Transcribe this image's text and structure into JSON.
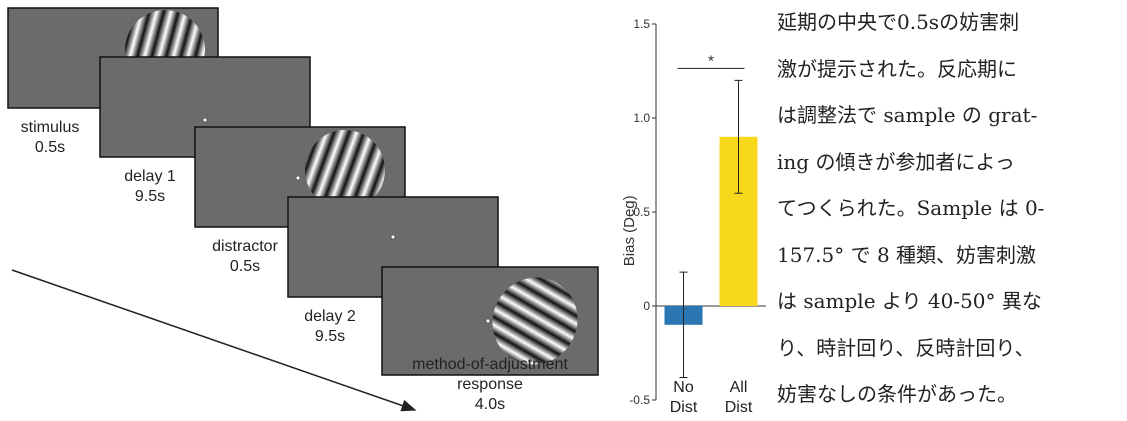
{
  "trial_diagram": {
    "stages": [
      {
        "label": "stimulus",
        "duration": "0.5s"
      },
      {
        "label": "delay 1",
        "duration": "9.5s"
      },
      {
        "label": "distractor",
        "duration": "0.5s"
      },
      {
        "label": "delay 2",
        "duration": "9.5s"
      },
      {
        "label": "method-of-adjustment response",
        "duration": "4.0s"
      }
    ]
  },
  "chart_data": {
    "type": "bar",
    "y_label": "Bias (Deg)",
    "significance": "*",
    "categories": [
      "No Dist",
      "All Dist"
    ],
    "values": [
      -0.1,
      0.9
    ],
    "errors": [
      0.28,
      0.3
    ],
    "colors": [
      "#2a77b4",
      "#f8d81c"
    ],
    "ylim": [
      -0.5,
      1.5
    ],
    "yticks": [
      -0.5,
      0,
      0.5,
      {
        "value": 1,
        "label": "1.0"
      },
      1.5
    ]
  },
  "text": {
    "lines": [
      "延期の中央で0.5sの妨害刺",
      "激が提示された。反応期に",
      "は調整法で sample の grat-",
      "ing の傾きが参加者によっ",
      "てつくられた。Sample は 0-",
      "157.5° で 8 種類、妨害刺激",
      "は sample より 40-50° 異な",
      "り、時計回り、反時計回り、",
      "妨害なしの条件があった。"
    ]
  }
}
